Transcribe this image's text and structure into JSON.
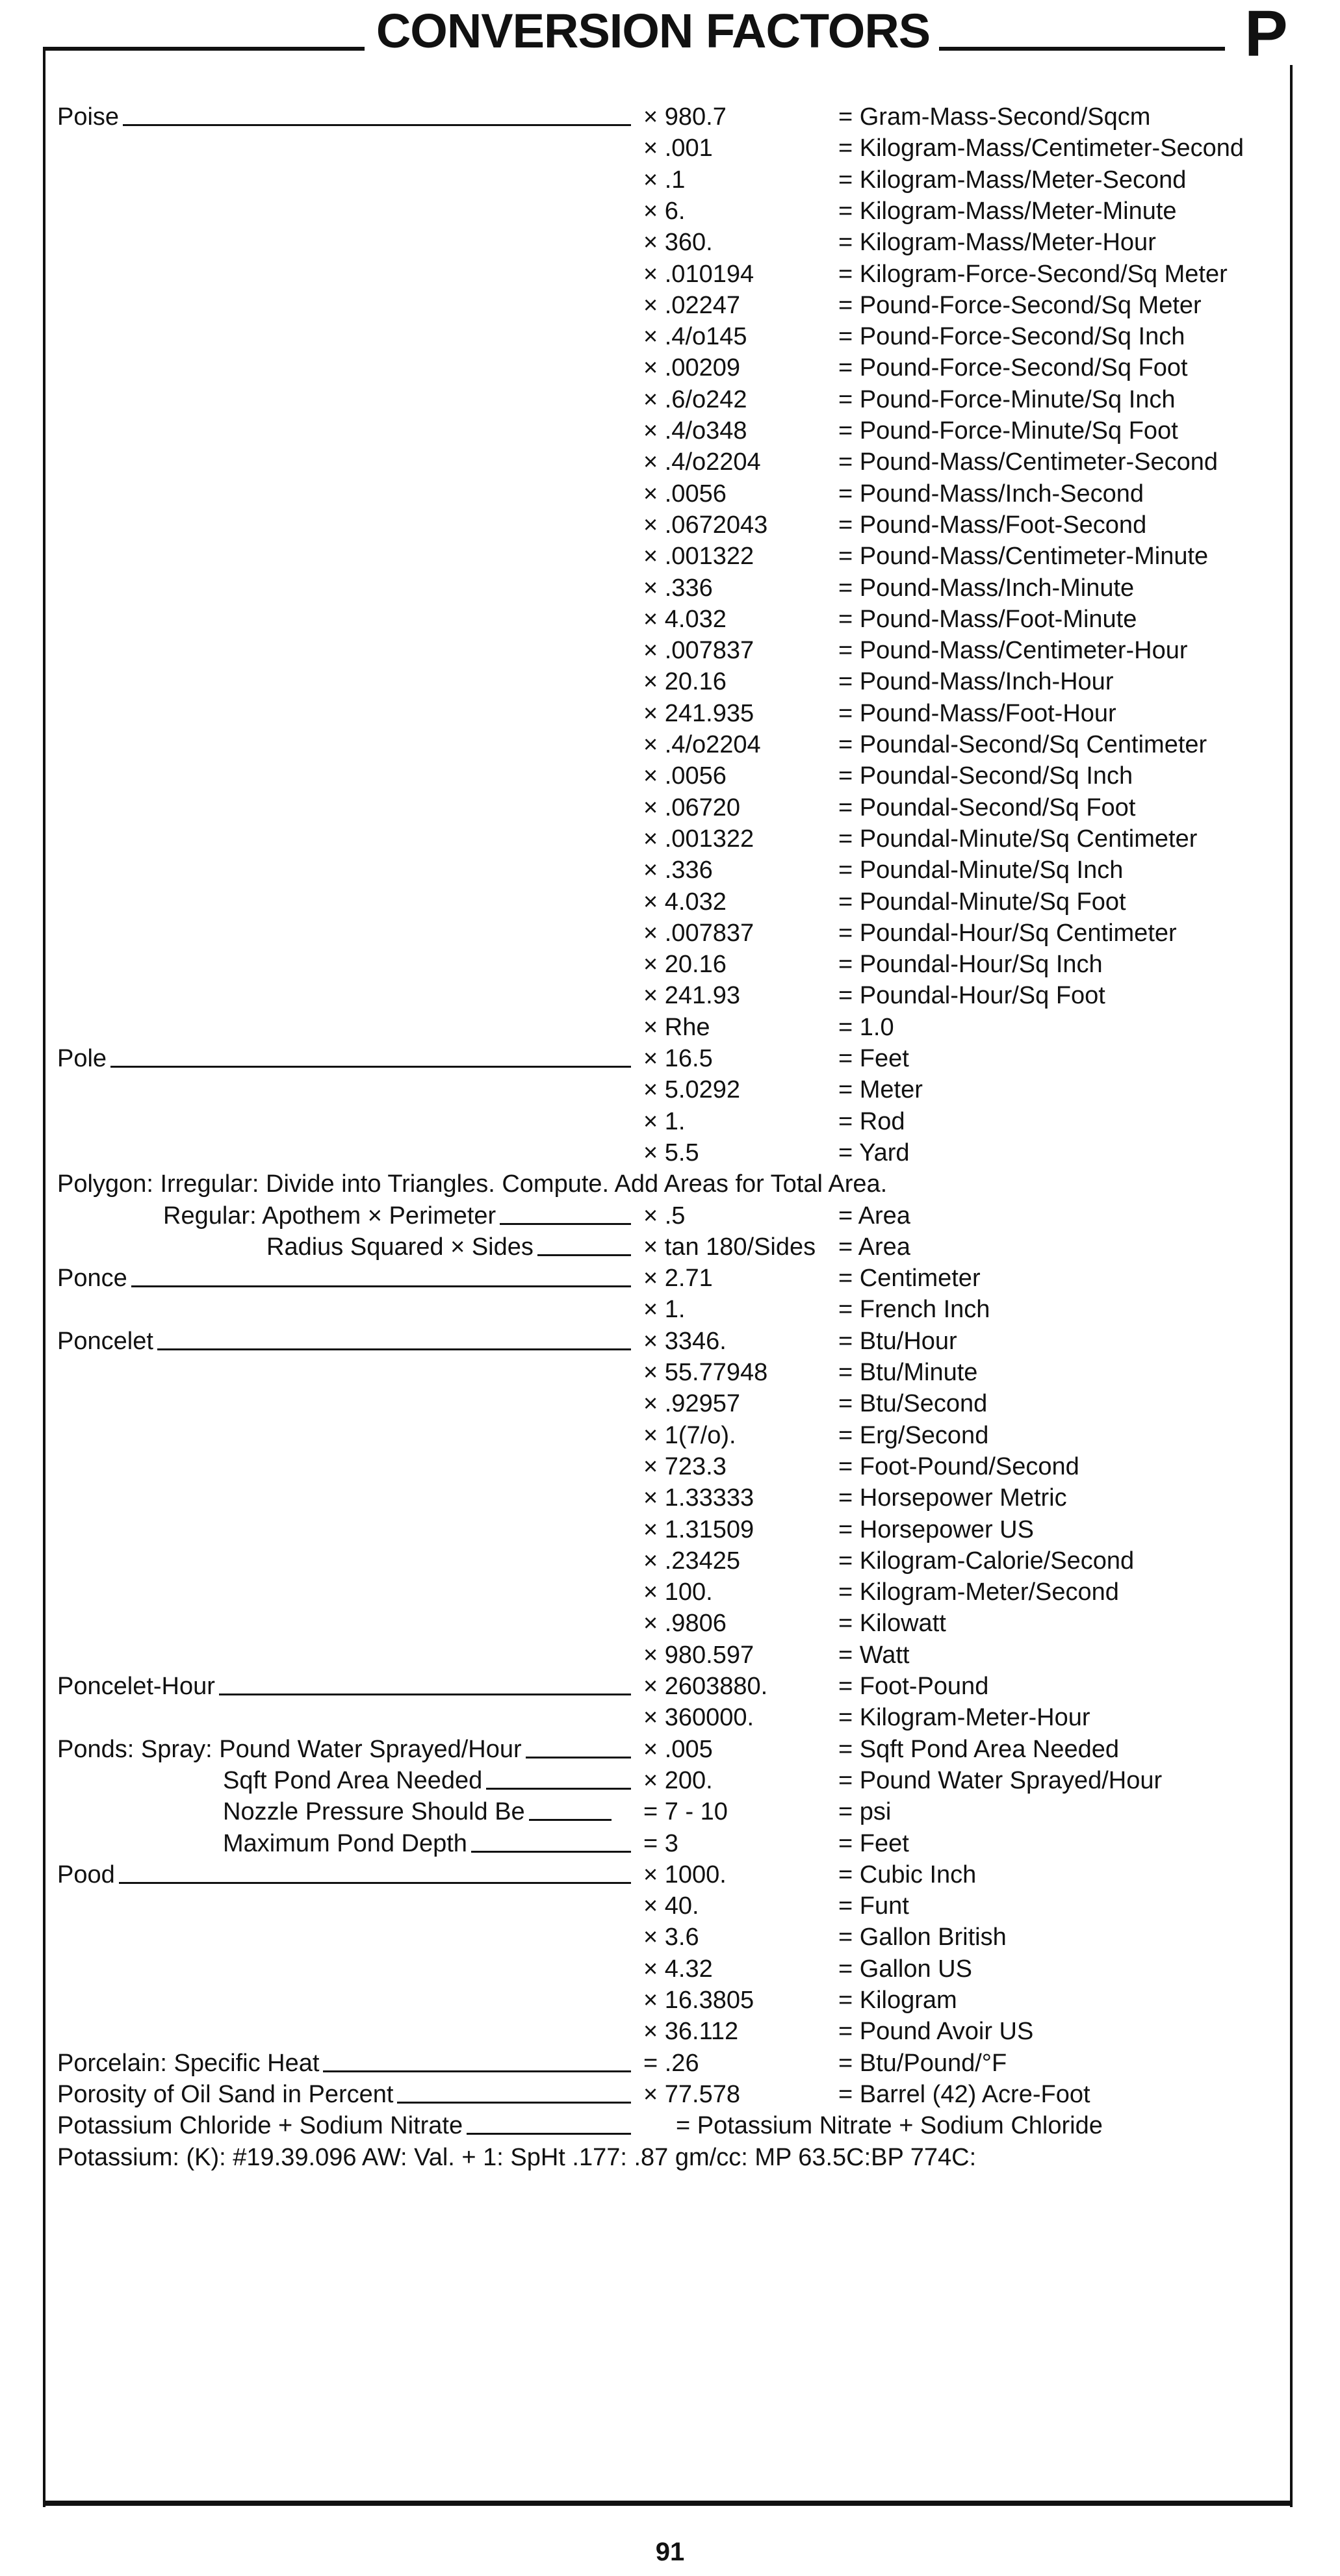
{
  "header": {
    "title": "CONVERSION FACTORS",
    "section_letter": "P"
  },
  "rows": [
    {
      "name": "Poise",
      "level": 0,
      "factor": "× 980.7",
      "result": "= Gram-Mass-Second/Sqcm"
    },
    {
      "factor": "× .001",
      "result": "= Kilogram-Mass/Centimeter-Second"
    },
    {
      "factor": "× .1",
      "result": "= Kilogram-Mass/Meter-Second"
    },
    {
      "factor": "× 6.",
      "result": "= Kilogram-Mass/Meter-Minute"
    },
    {
      "factor": "× 360.",
      "result": "= Kilogram-Mass/Meter-Hour"
    },
    {
      "factor": "× .010194",
      "result": "= Kilogram-Force-Second/Sq Meter"
    },
    {
      "factor": "× .02247",
      "result": "= Pound-Force-Second/Sq Meter"
    },
    {
      "factor": "× .4/o145",
      "result": "= Pound-Force-Second/Sq Inch"
    },
    {
      "factor": "× .00209",
      "result": "= Pound-Force-Second/Sq Foot"
    },
    {
      "factor": "× .6/o242",
      "result": "= Pound-Force-Minute/Sq Inch"
    },
    {
      "factor": "× .4/o348",
      "result": "= Pound-Force-Minute/Sq Foot"
    },
    {
      "factor": "× .4/o2204",
      "result": "= Pound-Mass/Centimeter-Second"
    },
    {
      "factor": "× .0056",
      "result": "= Pound-Mass/Inch-Second"
    },
    {
      "factor": "× .0672043",
      "result": "= Pound-Mass/Foot-Second"
    },
    {
      "factor": "× .001322",
      "result": "= Pound-Mass/Centimeter-Minute"
    },
    {
      "factor": "× .336",
      "result": "= Pound-Mass/Inch-Minute"
    },
    {
      "factor": "× 4.032",
      "result": "= Pound-Mass/Foot-Minute"
    },
    {
      "factor": "× .007837",
      "result": "= Pound-Mass/Centimeter-Hour"
    },
    {
      "factor": "× 20.16",
      "result": "= Pound-Mass/Inch-Hour"
    },
    {
      "factor": "× 241.935",
      "result": "= Pound-Mass/Foot-Hour"
    },
    {
      "factor": "× .4/o2204",
      "result": "= Poundal-Second/Sq Centimeter"
    },
    {
      "factor": "× .0056",
      "result": "= Poundal-Second/Sq Inch"
    },
    {
      "factor": "× .06720",
      "result": "= Poundal-Second/Sq Foot"
    },
    {
      "factor": "× .001322",
      "result": "= Poundal-Minute/Sq Centimeter"
    },
    {
      "factor": "× .336",
      "result": "= Poundal-Minute/Sq Inch"
    },
    {
      "factor": "× 4.032",
      "result": "= Poundal-Minute/Sq Foot"
    },
    {
      "factor": "× .007837",
      "result": "= Poundal-Hour/Sq Centimeter"
    },
    {
      "factor": "× 20.16",
      "result": "= Poundal-Hour/Sq Inch"
    },
    {
      "factor": "× 241.93",
      "result": "= Poundal-Hour/Sq Foot"
    },
    {
      "factor": "× Rhe",
      "result": "= 1.0"
    },
    {
      "name": "Pole",
      "level": 0,
      "factor": "× 16.5",
      "result": "= Feet"
    },
    {
      "factor": "× 5.0292",
      "result": "= Meter"
    },
    {
      "factor": "× 1.",
      "result": "= Rod"
    },
    {
      "factor": "× 5.5",
      "result": "= Yard"
    },
    {
      "text": "Polygon: Irregular: Divide into Triangles. Compute. Add Areas for Total Area."
    },
    {
      "name": "Regular: Apothem ×  Perimeter",
      "level": 1,
      "factor": "× .5",
      "result": "= Area"
    },
    {
      "name": "Radius Squared × Sides",
      "level": 2,
      "factor": "× tan 180/Sides",
      "result": "= Area"
    },
    {
      "name": "Ponce",
      "level": 0,
      "factor": "× 2.71",
      "result": "= Centimeter"
    },
    {
      "factor": "× 1.",
      "result": "= French Inch"
    },
    {
      "name": "Poncelet",
      "level": 0,
      "factor": "× 3346.",
      "result": "= Btu/Hour"
    },
    {
      "factor": "× 55.77948",
      "result": "= Btu/Minute"
    },
    {
      "factor": "× .92957",
      "result": "= Btu/Second"
    },
    {
      "factor": "× 1(7/o).",
      "result": "= Erg/Second"
    },
    {
      "factor": "× 723.3",
      "result": "= Foot-Pound/Second"
    },
    {
      "factor": "× 1.33333",
      "result": "= Horsepower Metric"
    },
    {
      "factor": "× 1.31509",
      "result": "= Horsepower US"
    },
    {
      "factor": "× .23425",
      "result": "= Kilogram-Calorie/Second"
    },
    {
      "factor": "× 100.",
      "result": "= Kilogram-Meter/Second"
    },
    {
      "factor": "× .9806",
      "result": "= Kilowatt"
    },
    {
      "factor": "× 980.597",
      "result": "= Watt"
    },
    {
      "name": "Poncelet-Hour",
      "level": 0,
      "factor": "× 2603880.",
      "result": "= Foot-Pound"
    },
    {
      "factor": "× 360000.",
      "result": "= Kilogram-Meter-Hour"
    },
    {
      "name": "Ponds: Spray: Pound Water Sprayed/Hour",
      "level": 0,
      "factor": "× .005",
      "result": "= Sqft Pond Area Needed"
    },
    {
      "name": "Sqft Pond Area Needed",
      "level": 3,
      "factor": "× 200.",
      "result": "= Pound Water Sprayed/Hour"
    },
    {
      "name": "Nozzle Pressure Should Be",
      "level": 3,
      "factor": "= 7 - 10",
      "result": "= psi"
    },
    {
      "name": "Maximum Pond Depth",
      "level": 3,
      "factor": "= 3",
      "result": "= Feet"
    },
    {
      "name": "Pood",
      "level": 0,
      "factor": "× 1000.",
      "result": "= Cubic Inch"
    },
    {
      "factor": "× 40.",
      "result": "= Funt"
    },
    {
      "factor": "× 3.6",
      "result": "= Gallon British"
    },
    {
      "factor": "× 4.32",
      "result": "= Gallon US"
    },
    {
      "factor": "× 16.3805",
      "result": "= Kilogram"
    },
    {
      "factor": "× 36.112",
      "result": "= Pound Avoir US"
    },
    {
      "name": "Porcelain: Specific Heat",
      "level": 0,
      "factor": "= .26",
      "result": "= Btu/Pound/°F"
    },
    {
      "name": "Porosity of Oil Sand in Percent",
      "level": 0,
      "factor": "× 77.578",
      "result": "= Barrel (42) Acre-Foot"
    },
    {
      "name": "Potassium Chloride + Sodium Nitrate",
      "level": 0,
      "factor": "",
      "result": "",
      "equation": "= Potassium Nitrate + Sodium Chloride"
    },
    {
      "text": "Potassium: (K): #19.39.096 AW: Val. + 1: SpHt .177: .87 gm/cc: MP 63.5C:BP 774C:"
    }
  ],
  "footer": {
    "page_number": "91"
  }
}
